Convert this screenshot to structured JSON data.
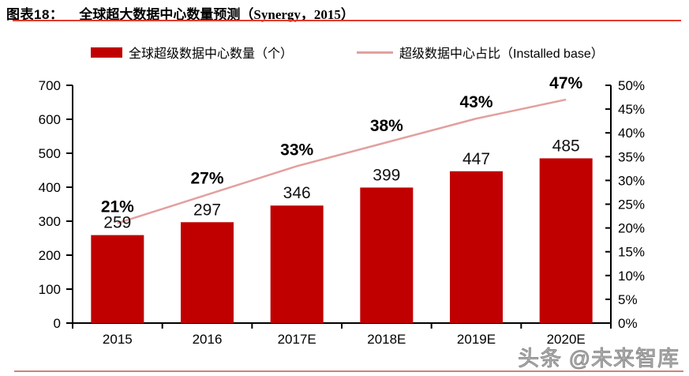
{
  "figure": {
    "label": "图表18：",
    "title": "全球超大数据中心数量预测（Synergy，2015）",
    "accent_color": "#e23b2e"
  },
  "legend": [
    {
      "label": "全球超级数据中心数量（个）",
      "swatch": "bar",
      "color": "#c00000"
    },
    {
      "label": "超级数据中心占比（Installed base）",
      "swatch": "line",
      "color": "#e2a09e"
    }
  ],
  "watermark": "头条 @未来智库",
  "chart_data": {
    "type": "bar",
    "categories": [
      "2015",
      "2016",
      "2017E",
      "2018E",
      "2019E",
      "2020E"
    ],
    "series": [
      {
        "name": "全球超级数据中心数量（个）",
        "type": "bar",
        "axis": "left",
        "color": "#c00000",
        "values": [
          259,
          297,
          346,
          399,
          447,
          485
        ]
      },
      {
        "name": "超级数据中心占比（Installed base）",
        "type": "line",
        "axis": "right",
        "color": "#e2a09e",
        "values": [
          21,
          27,
          33,
          38,
          43,
          47
        ],
        "unit": "%"
      }
    ],
    "left_axis": {
      "min": 0,
      "max": 700,
      "step": 100
    },
    "right_axis": {
      "min": 0,
      "max": 50,
      "step": 5,
      "suffix": "%"
    },
    "grid": false,
    "legend_position": "top",
    "title": "全球超大数据中心数量预测（Synergy，2015）"
  }
}
